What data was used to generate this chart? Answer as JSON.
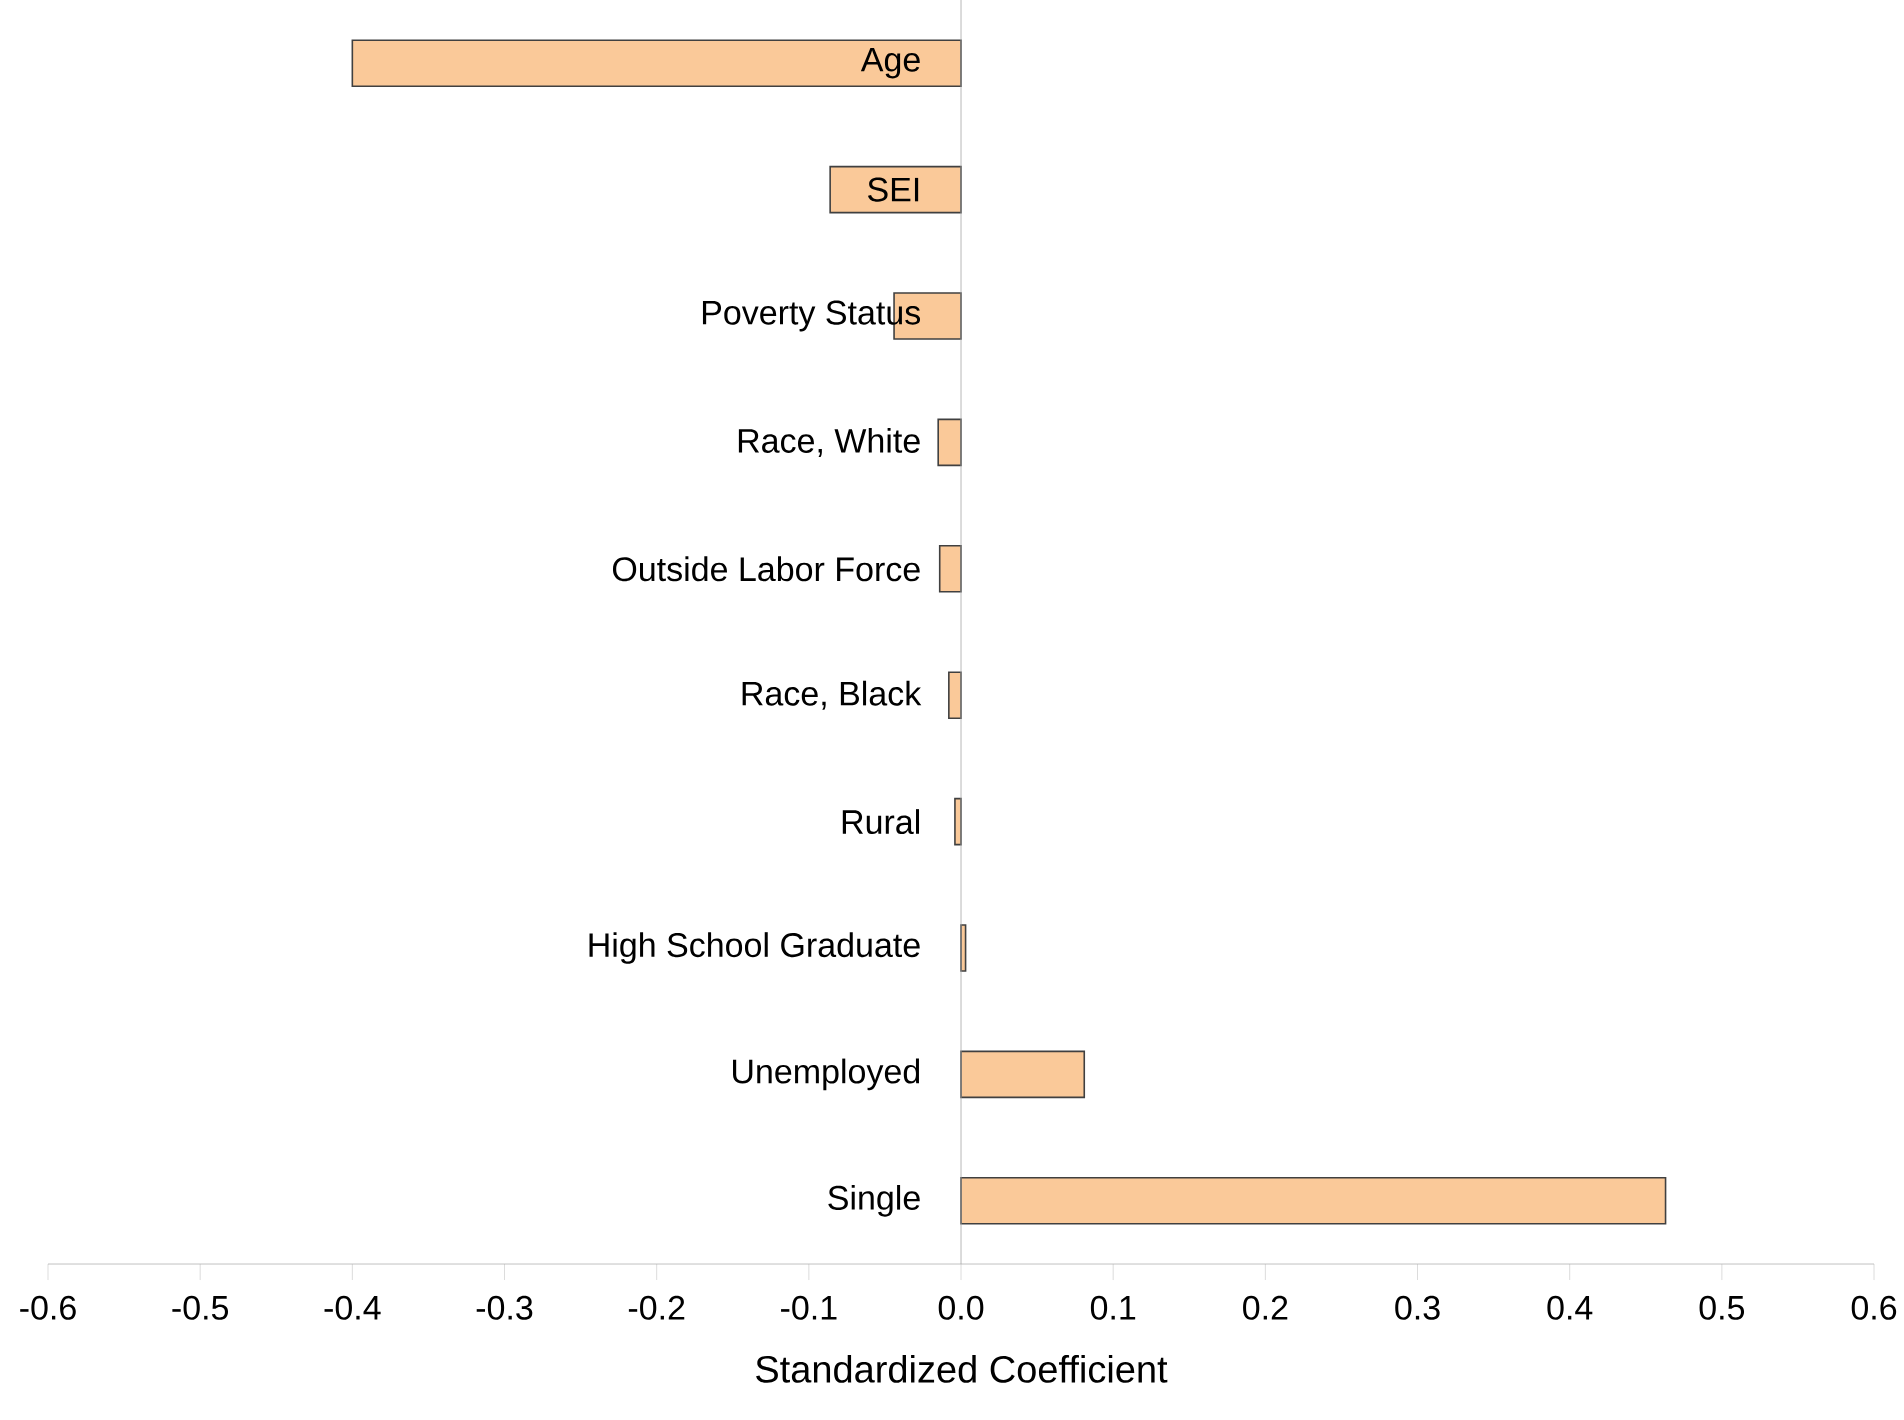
{
  "chart_data": {
    "type": "bar",
    "orientation": "horizontal",
    "xlabel": "Standardized Coefficient",
    "categories": [
      "Age",
      "SEI",
      "Poverty Status",
      "Race, White",
      "Outside Labor Force",
      "Race, Black",
      "Rural",
      "High School Graduate",
      "Unemployed",
      "Single"
    ],
    "values": [
      -0.4,
      -0.086,
      -0.044,
      -0.015,
      -0.014,
      -0.008,
      -0.004,
      0.003,
      0.081,
      0.463
    ],
    "color": "#fac999",
    "xlim": [
      -0.6,
      0.6
    ],
    "xticks": [
      -0.6,
      -0.5,
      -0.4,
      -0.3,
      -0.2,
      -0.1,
      {
        "value": 0,
        "label": "0.0"
      },
      0.1,
      0.2,
      0.3,
      0.4,
      0.5,
      0.6
    ],
    "grid": false
  }
}
